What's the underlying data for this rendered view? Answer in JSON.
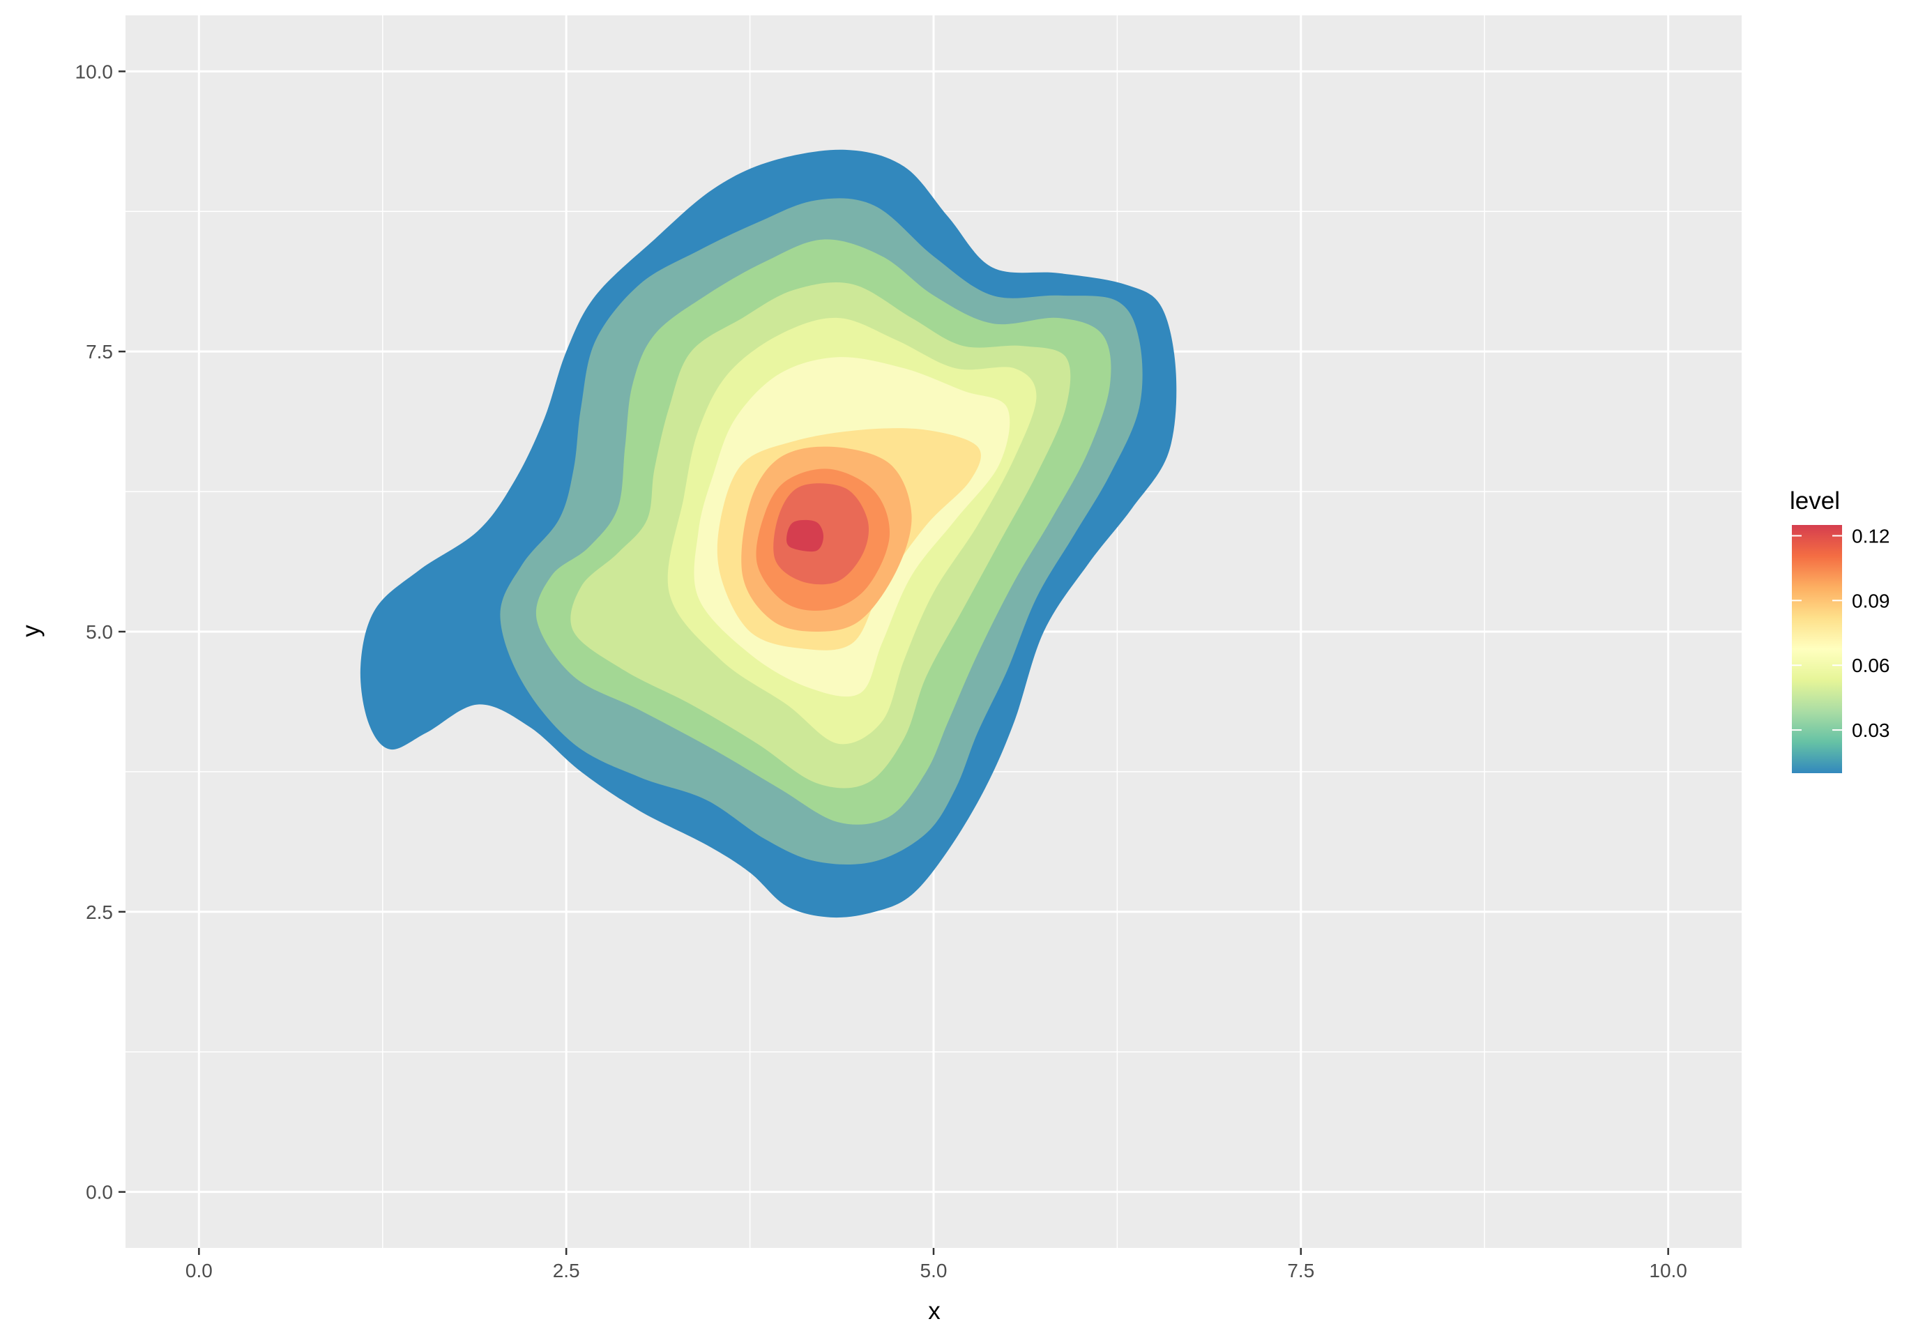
{
  "chart_data": {
    "type": "contour",
    "title": "",
    "xlabel": "x",
    "ylabel": "y",
    "xlim": [
      -0.5,
      10.5
    ],
    "ylim": [
      -0.5,
      10.5
    ],
    "x_ticks": [
      0,
      2.5,
      5,
      7.5,
      10
    ],
    "x_tick_labels": [
      "0.0",
      "2.5",
      "5.0",
      "7.5",
      "10.0"
    ],
    "y_ticks": [
      0,
      2.5,
      5,
      7.5,
      10
    ],
    "y_tick_labels": [
      "0.0",
      "2.5",
      "5.0",
      "7.5",
      "10.0"
    ],
    "grid": true,
    "panel_background": "#EBEBEB",
    "grid_color": "#FFFFFF",
    "legend": {
      "title": "level",
      "position": "right",
      "range": [
        0.01,
        0.125
      ],
      "breaks": [
        0.03,
        0.06,
        0.09,
        0.12
      ],
      "break_labels": [
        "0.03",
        "0.06",
        "0.09",
        "0.12"
      ],
      "colors": [
        "#3288BD",
        "#66C2A5",
        "#ABDDA4",
        "#E6F598",
        "#FFFFBF",
        "#FEE08B",
        "#FDAE61",
        "#F46D43",
        "#D53E4F"
      ]
    },
    "density_peak": {
      "x": 4.1,
      "y": 5.85,
      "level": 0.12
    },
    "bands": [
      {
        "level": 0.01,
        "color": "#3288BD",
        "outline": [
          [
            1.3,
            3.95
          ],
          [
            1.55,
            4.1
          ],
          [
            1.9,
            4.35
          ],
          [
            2.25,
            4.15
          ],
          [
            2.6,
            3.75
          ],
          [
            3.0,
            3.4
          ],
          [
            3.45,
            3.1
          ],
          [
            3.75,
            2.85
          ],
          [
            4.0,
            2.55
          ],
          [
            4.3,
            2.45
          ],
          [
            4.6,
            2.5
          ],
          [
            4.85,
            2.65
          ],
          [
            5.1,
            3.05
          ],
          [
            5.35,
            3.6
          ],
          [
            5.55,
            4.2
          ],
          [
            5.75,
            5.0
          ],
          [
            6.05,
            5.6
          ],
          [
            6.35,
            6.1
          ],
          [
            6.6,
            6.6
          ],
          [
            6.65,
            7.3
          ],
          [
            6.55,
            7.9
          ],
          [
            6.3,
            8.1
          ],
          [
            5.85,
            8.2
          ],
          [
            5.4,
            8.25
          ],
          [
            5.1,
            8.7
          ],
          [
            4.8,
            9.15
          ],
          [
            4.4,
            9.3
          ],
          [
            3.9,
            9.2
          ],
          [
            3.5,
            8.95
          ],
          [
            3.1,
            8.5
          ],
          [
            2.7,
            8.0
          ],
          [
            2.5,
            7.5
          ],
          [
            2.35,
            6.9
          ],
          [
            2.15,
            6.35
          ],
          [
            1.9,
            5.9
          ],
          [
            1.5,
            5.55
          ],
          [
            1.2,
            5.2
          ],
          [
            1.1,
            4.7
          ],
          [
            1.15,
            4.2
          ]
        ]
      },
      {
        "level": 0.025,
        "color": "#7AB2AA",
        "outline": [
          [
            2.05,
            5.15
          ],
          [
            2.2,
            4.55
          ],
          [
            2.55,
            4.0
          ],
          [
            3.0,
            3.7
          ],
          [
            3.45,
            3.5
          ],
          [
            3.85,
            3.15
          ],
          [
            4.2,
            2.95
          ],
          [
            4.6,
            2.95
          ],
          [
            4.95,
            3.2
          ],
          [
            5.15,
            3.6
          ],
          [
            5.3,
            4.1
          ],
          [
            5.5,
            4.65
          ],
          [
            5.7,
            5.3
          ],
          [
            5.95,
            5.85
          ],
          [
            6.2,
            6.4
          ],
          [
            6.4,
            7.0
          ],
          [
            6.4,
            7.6
          ],
          [
            6.25,
            7.95
          ],
          [
            5.85,
            8.0
          ],
          [
            5.4,
            8.0
          ],
          [
            5.0,
            8.35
          ],
          [
            4.6,
            8.8
          ],
          [
            4.2,
            8.85
          ],
          [
            3.8,
            8.65
          ],
          [
            3.4,
            8.4
          ],
          [
            3.0,
            8.1
          ],
          [
            2.7,
            7.6
          ],
          [
            2.6,
            7.0
          ],
          [
            2.55,
            6.45
          ],
          [
            2.45,
            6.0
          ],
          [
            2.2,
            5.6
          ]
        ]
      },
      {
        "level": 0.04,
        "color": "#A3D794",
        "outline": [
          [
            2.3,
            5.1
          ],
          [
            2.55,
            4.6
          ],
          [
            3.0,
            4.3
          ],
          [
            3.5,
            3.95
          ],
          [
            3.95,
            3.6
          ],
          [
            4.35,
            3.3
          ],
          [
            4.7,
            3.35
          ],
          [
            4.95,
            3.75
          ],
          [
            5.1,
            4.2
          ],
          [
            5.3,
            4.8
          ],
          [
            5.55,
            5.45
          ],
          [
            5.8,
            6.0
          ],
          [
            6.05,
            6.6
          ],
          [
            6.2,
            7.2
          ],
          [
            6.15,
            7.65
          ],
          [
            5.85,
            7.8
          ],
          [
            5.4,
            7.75
          ],
          [
            5.0,
            8.0
          ],
          [
            4.65,
            8.35
          ],
          [
            4.25,
            8.5
          ],
          [
            3.85,
            8.3
          ],
          [
            3.45,
            8.0
          ],
          [
            3.1,
            7.65
          ],
          [
            2.95,
            7.2
          ],
          [
            2.9,
            6.65
          ],
          [
            2.85,
            6.1
          ],
          [
            2.65,
            5.75
          ],
          [
            2.4,
            5.5
          ]
        ]
      },
      {
        "level": 0.05,
        "color": "#CDE898",
        "outline": [
          [
            2.55,
            5.0
          ],
          [
            2.9,
            4.65
          ],
          [
            3.35,
            4.35
          ],
          [
            3.8,
            4.0
          ],
          [
            4.2,
            3.65
          ],
          [
            4.55,
            3.65
          ],
          [
            4.8,
            4.05
          ],
          [
            4.95,
            4.6
          ],
          [
            5.2,
            5.2
          ],
          [
            5.45,
            5.8
          ],
          [
            5.7,
            6.4
          ],
          [
            5.9,
            7.0
          ],
          [
            5.9,
            7.45
          ],
          [
            5.6,
            7.55
          ],
          [
            5.2,
            7.55
          ],
          [
            4.85,
            7.8
          ],
          [
            4.45,
            8.1
          ],
          [
            4.05,
            8.05
          ],
          [
            3.7,
            7.8
          ],
          [
            3.35,
            7.5
          ],
          [
            3.2,
            7.0
          ],
          [
            3.1,
            6.45
          ],
          [
            3.05,
            6.0
          ],
          [
            2.85,
            5.7
          ],
          [
            2.6,
            5.4
          ]
        ]
      },
      {
        "level": 0.06,
        "color": "#E9F6A1",
        "outline": [
          [
            3.2,
            5.35
          ],
          [
            3.55,
            4.75
          ],
          [
            4.0,
            4.35
          ],
          [
            4.35,
            4.0
          ],
          [
            4.65,
            4.2
          ],
          [
            4.8,
            4.75
          ],
          [
            5.0,
            5.35
          ],
          [
            5.3,
            5.95
          ],
          [
            5.55,
            6.55
          ],
          [
            5.7,
            7.1
          ],
          [
            5.55,
            7.35
          ],
          [
            5.15,
            7.35
          ],
          [
            4.75,
            7.6
          ],
          [
            4.35,
            7.8
          ],
          [
            3.95,
            7.65
          ],
          [
            3.6,
            7.3
          ],
          [
            3.4,
            6.8
          ],
          [
            3.3,
            6.2
          ]
        ]
      },
      {
        "level": 0.07,
        "color": "#FAFBC0",
        "outline": [
          [
            3.4,
            5.3
          ],
          [
            3.75,
            4.8
          ],
          [
            4.15,
            4.5
          ],
          [
            4.5,
            4.45
          ],
          [
            4.65,
            4.9
          ],
          [
            4.85,
            5.5
          ],
          [
            5.15,
            6.0
          ],
          [
            5.45,
            6.5
          ],
          [
            5.5,
            7.0
          ],
          [
            5.2,
            7.15
          ],
          [
            4.8,
            7.35
          ],
          [
            4.35,
            7.45
          ],
          [
            3.95,
            7.3
          ],
          [
            3.65,
            6.9
          ],
          [
            3.5,
            6.4
          ],
          [
            3.4,
            5.9
          ]
        ]
      },
      {
        "level": 0.08,
        "color": "#FEE391",
        "outline": [
          [
            3.55,
            5.5
          ],
          [
            3.75,
            5.0
          ],
          [
            4.1,
            4.85
          ],
          [
            4.45,
            4.9
          ],
          [
            4.65,
            5.4
          ],
          [
            4.95,
            5.95
          ],
          [
            5.25,
            6.35
          ],
          [
            5.3,
            6.65
          ],
          [
            4.95,
            6.8
          ],
          [
            4.5,
            6.8
          ],
          [
            4.05,
            6.7
          ],
          [
            3.7,
            6.5
          ],
          [
            3.55,
            6.0
          ]
        ]
      },
      {
        "level": 0.09,
        "color": "#FDB56F",
        "outline": [
          [
            3.7,
            5.5
          ],
          [
            3.9,
            5.1
          ],
          [
            4.2,
            5.0
          ],
          [
            4.5,
            5.1
          ],
          [
            4.75,
            5.55
          ],
          [
            4.85,
            6.05
          ],
          [
            4.7,
            6.5
          ],
          [
            4.3,
            6.65
          ],
          [
            3.95,
            6.55
          ],
          [
            3.75,
            6.15
          ]
        ]
      },
      {
        "level": 0.1,
        "color": "#FA9056",
        "outline": [
          [
            3.8,
            5.6
          ],
          [
            4.0,
            5.25
          ],
          [
            4.3,
            5.2
          ],
          [
            4.55,
            5.4
          ],
          [
            4.7,
            5.85
          ],
          [
            4.6,
            6.25
          ],
          [
            4.3,
            6.45
          ],
          [
            4.0,
            6.35
          ],
          [
            3.85,
            6.05
          ]
        ]
      },
      {
        "level": 0.11,
        "color": "#E96A56",
        "outline": [
          [
            3.92,
            5.65
          ],
          [
            4.1,
            5.45
          ],
          [
            4.35,
            5.45
          ],
          [
            4.52,
            5.7
          ],
          [
            4.55,
            6.0
          ],
          [
            4.4,
            6.28
          ],
          [
            4.1,
            6.3
          ],
          [
            3.95,
            6.05
          ]
        ]
      },
      {
        "level": 0.12,
        "color": "#D53E4F",
        "outline": [
          [
            4.03,
            5.75
          ],
          [
            4.2,
            5.72
          ],
          [
            4.25,
            5.85
          ],
          [
            4.2,
            5.98
          ],
          [
            4.05,
            5.98
          ],
          [
            4.0,
            5.85
          ]
        ]
      }
    ]
  }
}
